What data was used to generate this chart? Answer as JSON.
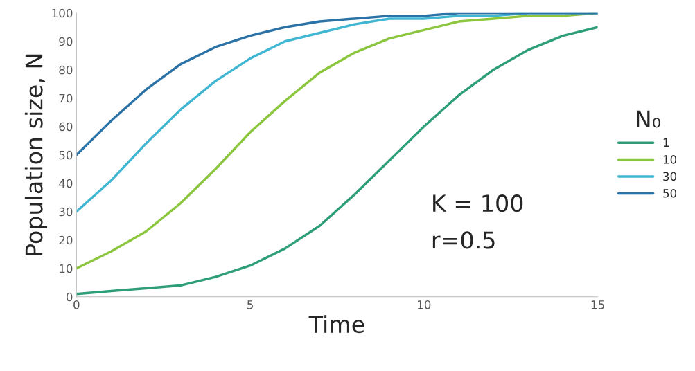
{
  "chart_data": {
    "type": "line",
    "xlabel": "Time",
    "ylabel": "Population size, N",
    "legend_title": "N₀",
    "legend": "right",
    "grid": false,
    "x": [
      0,
      1,
      2,
      3,
      4,
      5,
      6,
      7,
      8,
      9,
      10,
      11,
      12,
      13,
      14,
      15
    ],
    "series": [
      {
        "name": "1",
        "color": "#2e9e78",
        "values": [
          1,
          2,
          3,
          4,
          7,
          11,
          17,
          25,
          36,
          48,
          60,
          71,
          80,
          87,
          92,
          95
        ]
      },
      {
        "name": "10",
        "color": "#8cc63f",
        "values": [
          10,
          16,
          23,
          33,
          45,
          58,
          69,
          79,
          86,
          91,
          94,
          97,
          98,
          99,
          99,
          100
        ]
      },
      {
        "name": "30",
        "color": "#41b6d2",
        "values": [
          30,
          41,
          54,
          66,
          76,
          84,
          90,
          93,
          96,
          98,
          98,
          99,
          99,
          100,
          100,
          100
        ]
      },
      {
        "name": "50",
        "color": "#2b72a6",
        "values": [
          50,
          62,
          73,
          82,
          88,
          92,
          95,
          97,
          98,
          99,
          99,
          100,
          100,
          100,
          100,
          100
        ]
      }
    ],
    "xlim": [
      0,
      15
    ],
    "xticks": [
      0,
      5,
      10,
      15
    ],
    "ylim": [
      0,
      100
    ],
    "yticks": [
      0,
      10,
      20,
      30,
      40,
      50,
      60,
      70,
      80,
      90,
      100
    ],
    "annotations": [
      "K = 100",
      "r=0.5"
    ]
  }
}
